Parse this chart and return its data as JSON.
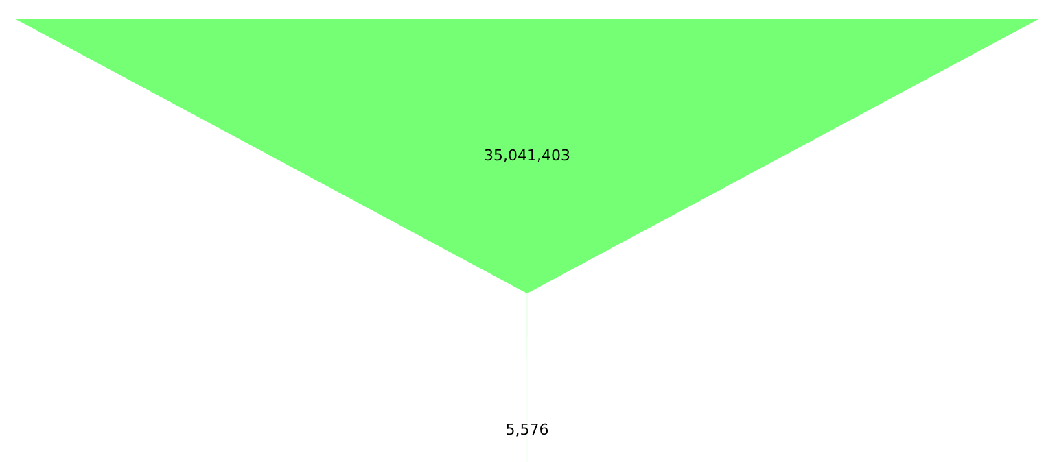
{
  "chart_data": {
    "type": "other",
    "values": [
      35041403,
      5576
    ],
    "value_labels": [
      "35,041,403",
      "5,576"
    ],
    "color": "#74ff74"
  }
}
